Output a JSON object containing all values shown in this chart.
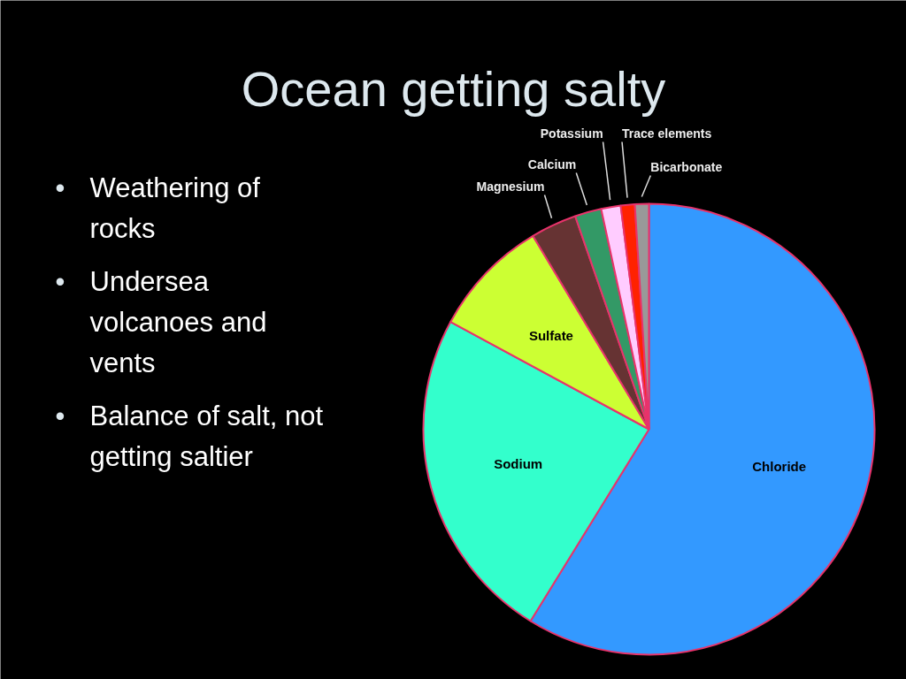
{
  "chart_data": {
    "type": "pie",
    "title": "Ocean getting salty",
    "categories": [
      "Chloride",
      "Sodium",
      "Sulfate",
      "Magnesium",
      "Calcium",
      "Potassium",
      "Trace elements",
      "Bicarbonate"
    ],
    "values": [
      58.8,
      24.1,
      8.5,
      3.3,
      1.9,
      1.4,
      1.0,
      1.0
    ],
    "colors": [
      "#3399ff",
      "#33ffcc",
      "#ccff33",
      "#663333",
      "#339966",
      "#ffccff",
      "#ff2200",
      "#999999"
    ],
    "annotations": [
      "•\tWeathering of\nrocks",
      "•\tUndersea\nvolcanoes and\nvents",
      "•\tBalance of salt, not\ngetting saltier"
    ]
  }
}
